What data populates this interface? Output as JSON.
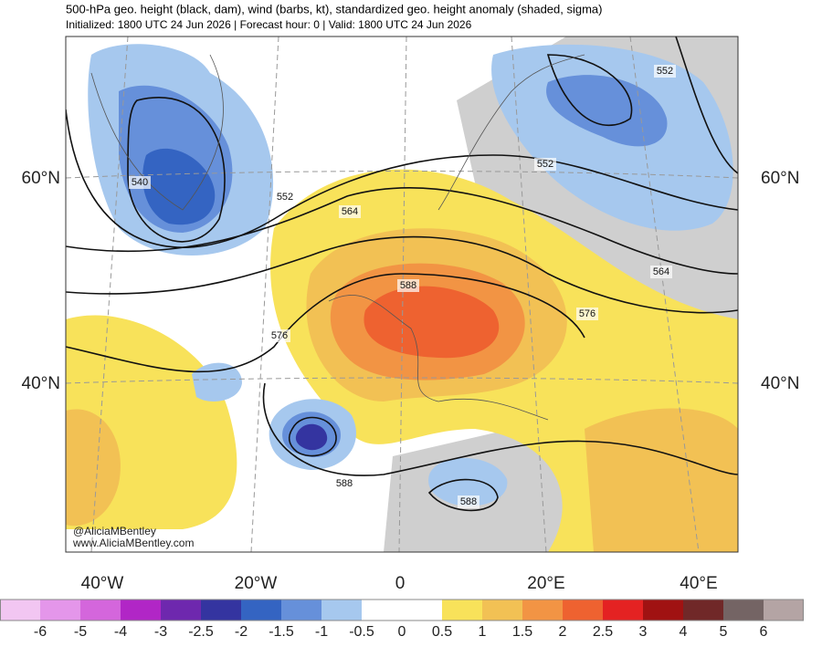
{
  "header": {
    "title": "500-hPa geo. height (black, dam), wind (barbs, kt), standardized geo. height anomaly (shaded, sigma)",
    "subtitle": "Initialized: 1800 UTC 24 Jun 2026 | Forecast hour: 0 | Valid: 1800 UTC 24 Jun 2026"
  },
  "map": {
    "contour_labels": [
      "540",
      "552",
      "552",
      "552",
      "564",
      "564",
      "576",
      "576",
      "588",
      "588",
      "588"
    ],
    "latitude_labels": [
      "60°N",
      "40°N"
    ],
    "longitude_labels": [
      "40°W",
      "20°W",
      "0",
      "20°E",
      "40°E"
    ],
    "credits": [
      "@AliciaMBentley",
      "www.AliciaMBentley.com"
    ]
  },
  "colorbar": {
    "ticks": [
      -6,
      -5,
      -4,
      -3,
      -2.5,
      -2,
      -1.5,
      -1,
      -0.5,
      0,
      0.5,
      1,
      1.5,
      2,
      2.5,
      3,
      4,
      5,
      6
    ],
    "colors": [
      "#f2c6f2",
      "#e496ea",
      "#d466dc",
      "#b126c6",
      "#6e28ae",
      "#3434a0",
      "#3464c2",
      "#6690da",
      "#a6c8ee",
      "#ffffff",
      "#ffffff",
      "#f8e25a",
      "#f2c154",
      "#f29444",
      "#ee6230",
      "#e42222",
      "#a01212",
      "#702828",
      "#746464",
      "#b4a4a4"
    ]
  }
}
